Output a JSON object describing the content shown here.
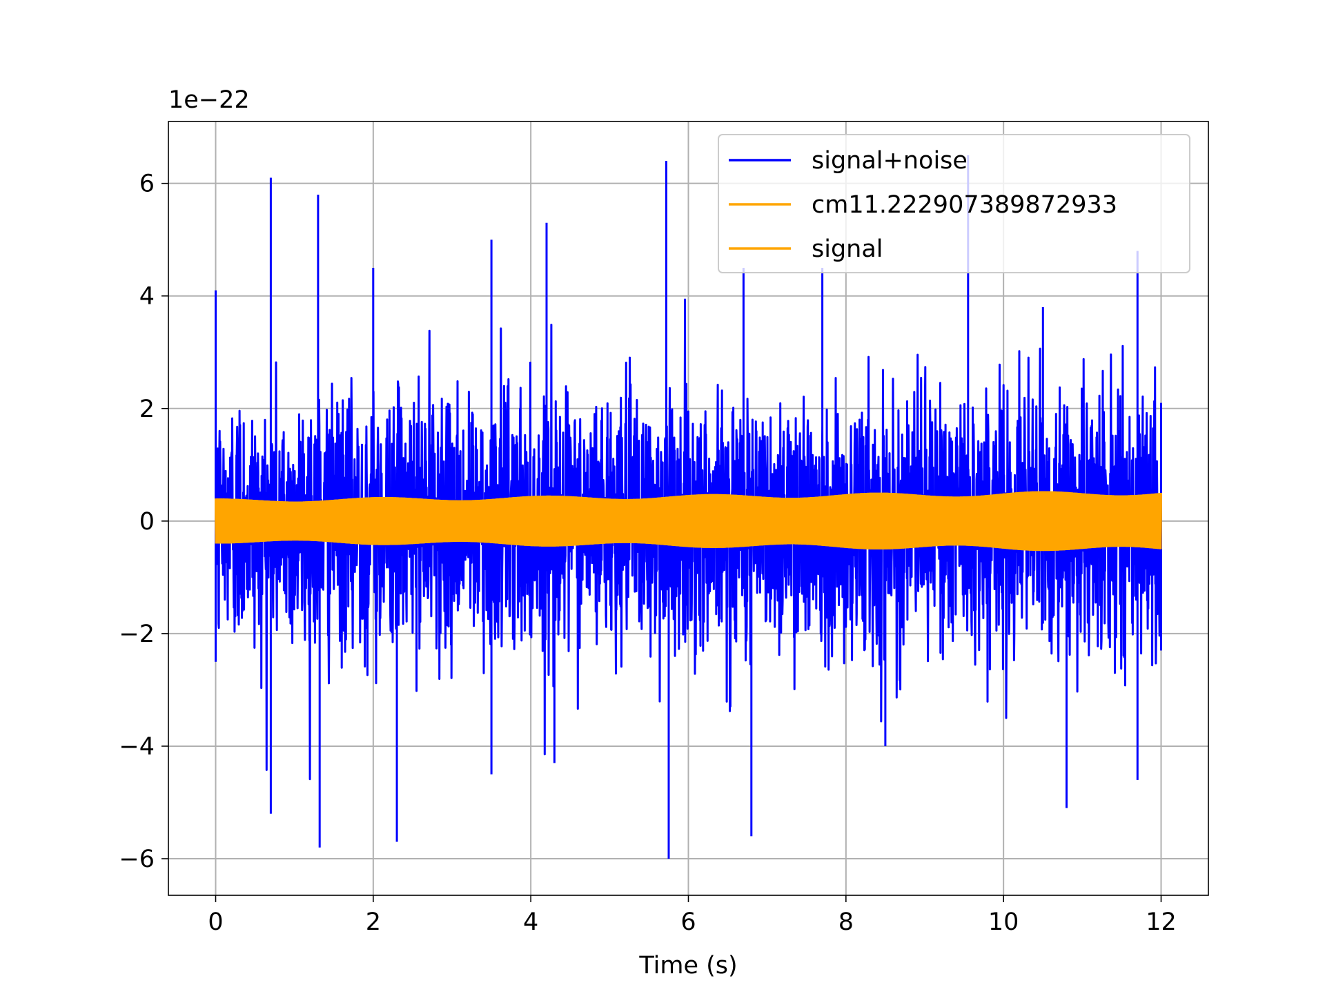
{
  "chart_data": {
    "type": "line",
    "title": "",
    "xlabel": "Time (s)",
    "ylabel": "",
    "offset_label": "1e−22",
    "y_scale_exponent": -22,
    "xlim": [
      -0.6,
      12.6
    ],
    "ylim": [
      -6.65,
      7.1
    ],
    "x_ticks": [
      0,
      2,
      4,
      6,
      8,
      10,
      12
    ],
    "y_ticks": [
      -6,
      -4,
      -2,
      0,
      2,
      4,
      6
    ],
    "x_tick_labels": [
      "0",
      "2",
      "4",
      "6",
      "8",
      "10",
      "12"
    ],
    "y_tick_labels": [
      "−6",
      "−4",
      "−2",
      "0",
      "2",
      "4",
      "6"
    ],
    "grid": true,
    "legend_position": "top-right",
    "colors": {
      "signal_noise": "#0000ff",
      "template": "#ffa500",
      "signal": "#ffa500",
      "grid": "#b0b0b0"
    },
    "series": [
      {
        "name": "signal+noise",
        "color": "#0000ff",
        "x_range": [
          0,
          12
        ],
        "description_values": "noisy oscillation, approx ±2 (×1e-22) typical, peaks near 6.4 at t≈5.72 and t≈9.55, minimum ≈ -6.0 at t≈5.75",
        "envelope_upper": [
          [
            0,
            4.1
          ],
          [
            0.7,
            6.1
          ],
          [
            1.3,
            5.8
          ],
          [
            2.0,
            4.5
          ],
          [
            3.5,
            5.0
          ],
          [
            4.2,
            5.3
          ],
          [
            5.72,
            6.4
          ],
          [
            6.7,
            4.5
          ],
          [
            7.7,
            4.5
          ],
          [
            9.55,
            6.5
          ],
          [
            10.5,
            3.8
          ],
          [
            11.7,
            4.8
          ],
          [
            12,
            2.1
          ]
        ],
        "envelope_lower": [
          [
            0,
            -2.5
          ],
          [
            0.7,
            -5.2
          ],
          [
            1.32,
            -5.8
          ],
          [
            2.3,
            -5.7
          ],
          [
            3.5,
            -4.5
          ],
          [
            4.3,
            -4.3
          ],
          [
            5.75,
            -6.0
          ],
          [
            6.8,
            -5.6
          ],
          [
            8.5,
            -4.0
          ],
          [
            10.8,
            -5.1
          ],
          [
            11.7,
            -4.6
          ],
          [
            12,
            -2.3
          ]
        ]
      },
      {
        "name": "cm11.222907389872933",
        "color": "#ffa500",
        "x_range": [
          0,
          12
        ],
        "amplitude_start": 0.4,
        "amplitude_end": 0.55
      },
      {
        "name": "signal",
        "color": "#ffa500",
        "x_range": [
          0,
          12
        ],
        "amplitude_start": 0.4,
        "amplitude_end": 0.55
      }
    ]
  }
}
